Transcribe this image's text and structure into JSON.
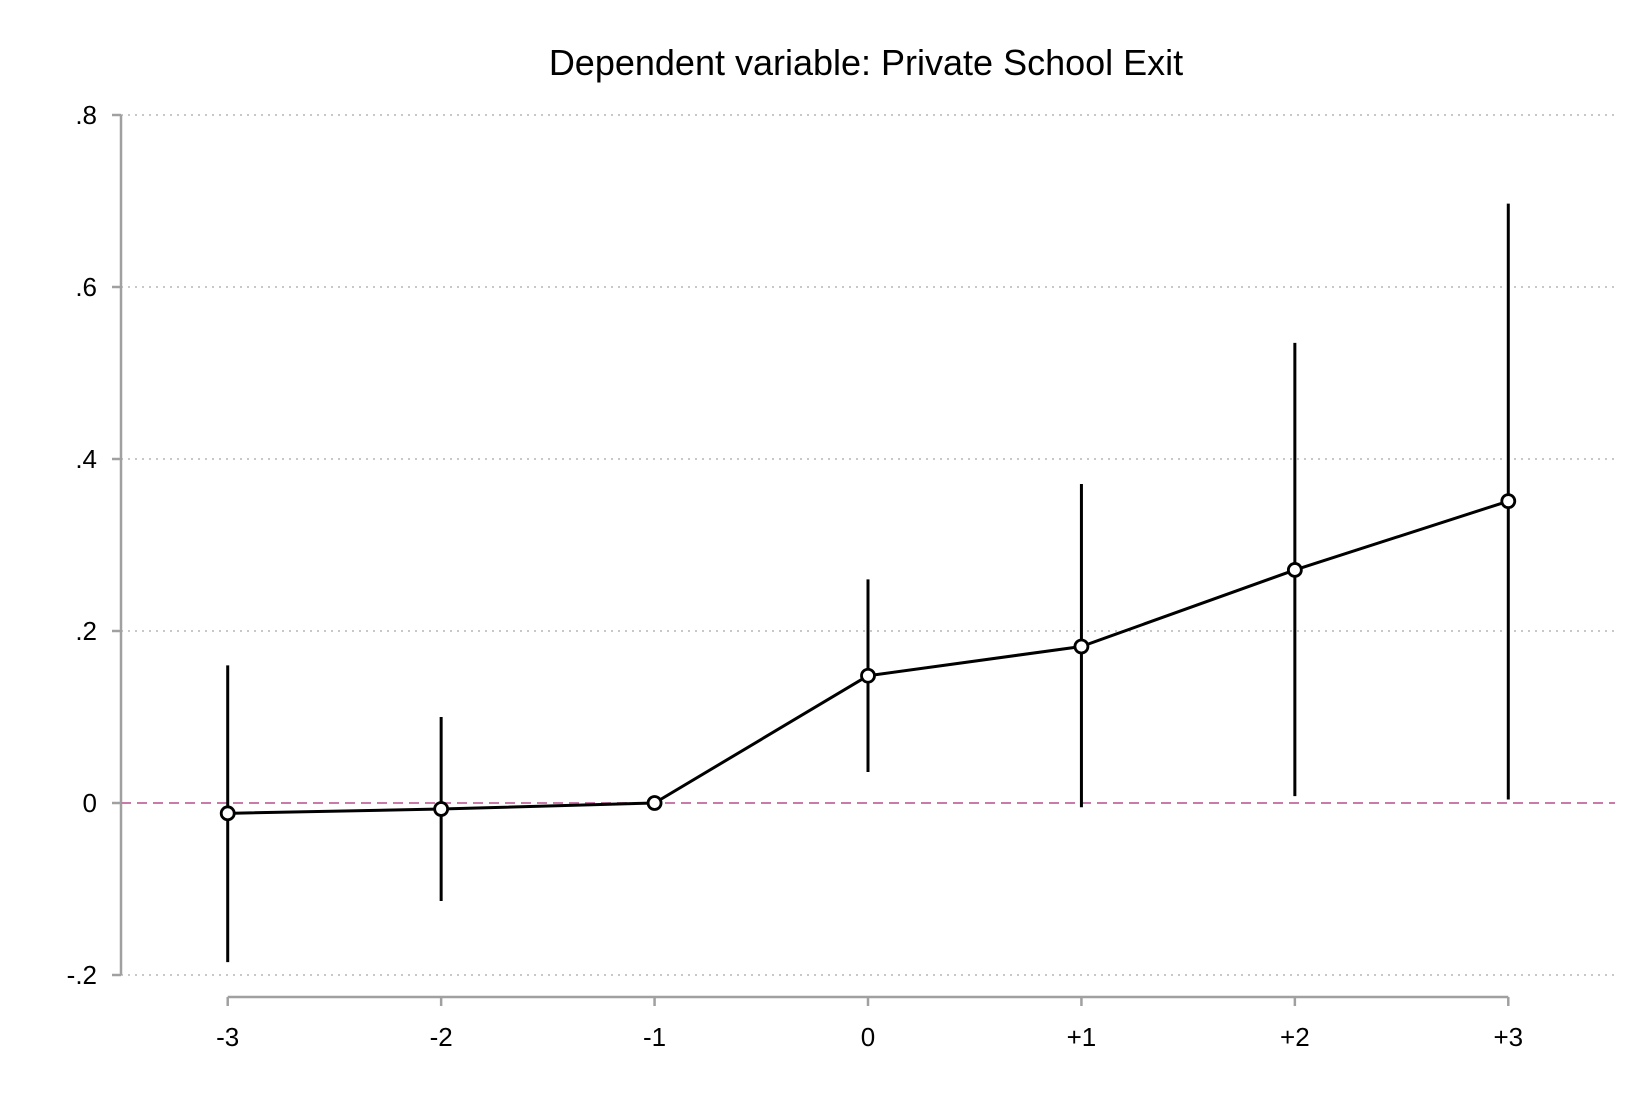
{
  "chart_data": {
    "type": "line",
    "title": "Dependent variable: Private School Exit",
    "xlabel": "",
    "ylabel": "",
    "categories": [
      "-3",
      "-2",
      "-1",
      "0",
      "+1",
      "+2",
      "+3"
    ],
    "x": [
      -3,
      -2,
      -1,
      0,
      1,
      2,
      3
    ],
    "yticks": [
      -0.2,
      0,
      0.2,
      0.4,
      0.6,
      0.8
    ],
    "ytick_labels": [
      "-.2",
      "0",
      ".2",
      ".4",
      ".6",
      ".8"
    ],
    "xlim": [
      -3.5,
      3.5
    ],
    "ylim": [
      -0.2,
      0.8
    ],
    "grid": "horizontal dotted",
    "reference_line": {
      "y": 0,
      "style": "dashed",
      "color": "#c87aa8"
    },
    "series": [
      {
        "values": [
          -0.012,
          -0.007,
          0.0,
          0.148,
          0.182,
          0.271,
          0.351
        ],
        "ci_low": [
          -0.185,
          -0.114,
          0.0,
          0.036,
          -0.005,
          0.008,
          0.004
        ],
        "ci_high": [
          0.16,
          0.1,
          0.0,
          0.26,
          0.371,
          0.535,
          0.697
        ],
        "color": "#000000",
        "marker": "hollow-circle"
      }
    ],
    "colors": {
      "axis": "#a0a0a0",
      "grid": "#b5b5b5",
      "line": "#000000"
    }
  }
}
